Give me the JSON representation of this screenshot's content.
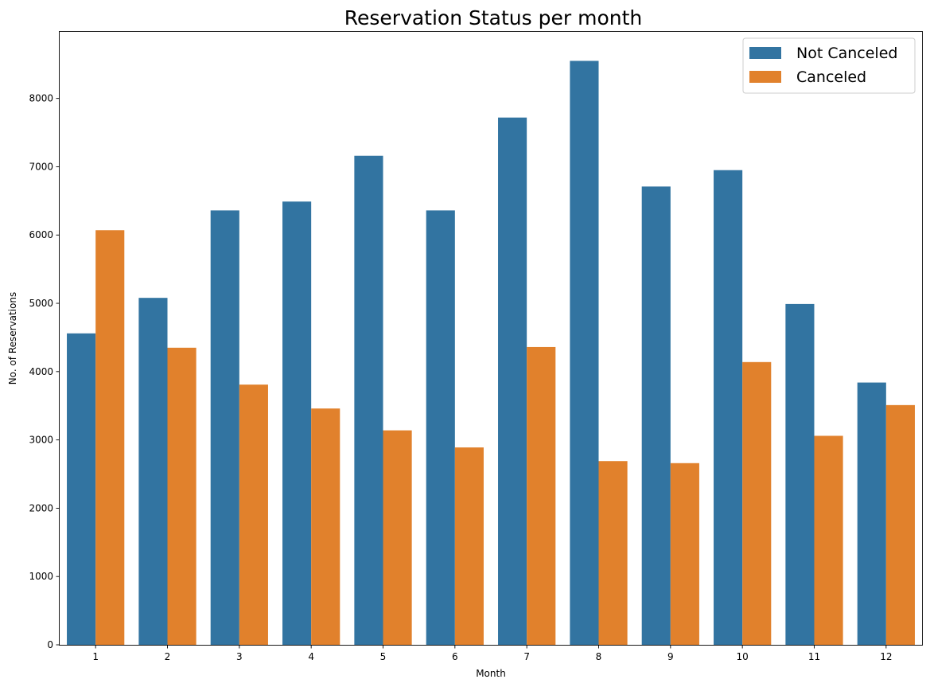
{
  "chart_data": {
    "type": "bar",
    "title": "Reservation Status per month",
    "xlabel": "Month",
    "ylabel": "No. of Reservations",
    "categories": [
      "1",
      "2",
      "3",
      "4",
      "5",
      "6",
      "7",
      "8",
      "9",
      "10",
      "11",
      "12"
    ],
    "series": [
      {
        "name": "Not Canceled",
        "color": "#3274a1",
        "values": [
          4560,
          5080,
          6360,
          6490,
          7160,
          6360,
          7720,
          8550,
          6710,
          6950,
          4990,
          3840
        ]
      },
      {
        "name": "Canceled",
        "color": "#e1812c",
        "values": [
          6070,
          4350,
          3810,
          3460,
          3140,
          2890,
          4360,
          2690,
          2660,
          4140,
          3060,
          3510
        ]
      }
    ],
    "ylim": [
      0,
      8975
    ],
    "yticks": [
      0,
      1000,
      2000,
      3000,
      4000,
      5000,
      6000,
      7000,
      8000
    ],
    "grid": false,
    "legend_position": "top-right"
  }
}
